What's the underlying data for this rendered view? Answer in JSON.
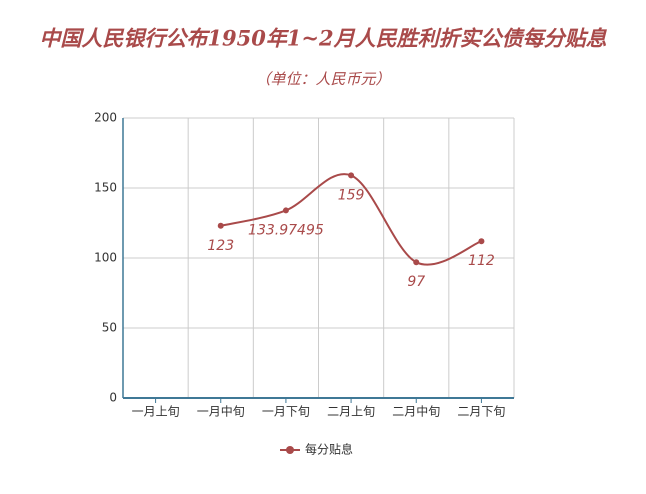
{
  "chart_data": {
    "type": "line",
    "title": "中国人民银行公布1950年1~2月人民胜利折实公债每分贴息",
    "subtitle": "（单位：人民币元）",
    "categories": [
      "一月上旬",
      "一月中旬",
      "一月下旬",
      "二月上旬",
      "二月中旬",
      "二月下旬"
    ],
    "series": [
      {
        "name": "每分贴息",
        "color": "#a94a4a",
        "values": [
          null,
          123,
          133.97495,
          159,
          97,
          112
        ]
      }
    ],
    "ylim": [
      0,
      200
    ],
    "yticks": [
      0,
      50,
      100,
      150,
      200
    ],
    "grid": true,
    "smooth": true,
    "legend": "bottom"
  }
}
